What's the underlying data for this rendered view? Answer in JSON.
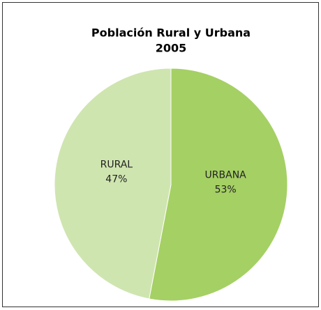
{
  "chart_data": {
    "type": "pie",
    "title": "Población Rural y Urbana",
    "subtitle": "2005",
    "categories": [
      "URBANA",
      "RURAL"
    ],
    "values": [
      53,
      47
    ],
    "value_labels": [
      "53%",
      "47%"
    ],
    "colors": [
      "#a5d064",
      "#cfe5b0"
    ]
  }
}
